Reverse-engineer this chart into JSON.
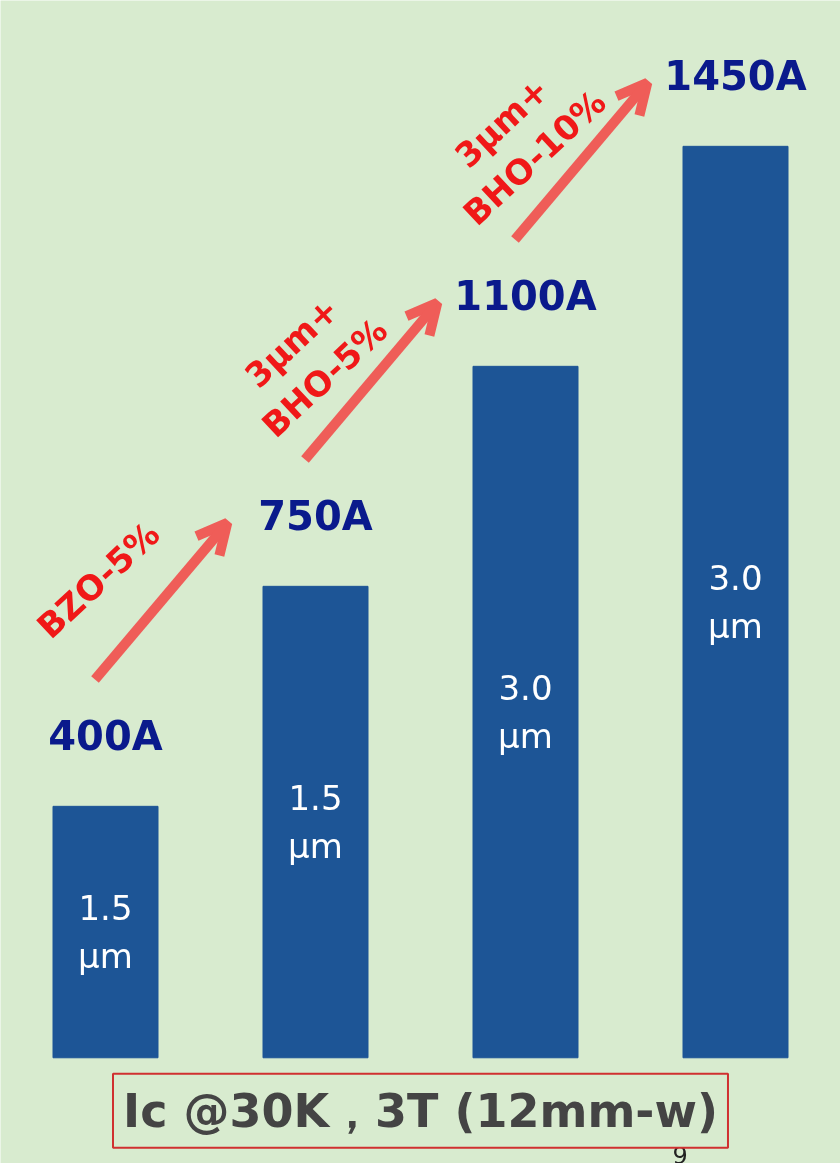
{
  "chart_data": {
    "type": "bar",
    "title": "Ic @30K，3T (12mm-w)",
    "categories": [
      null,
      null,
      null,
      null
    ],
    "values": [
      400,
      750,
      1100,
      1450
    ],
    "value_labels": [
      "400A",
      "750A",
      "1100A",
      "1450A"
    ],
    "color": "#1d5596",
    "annotations": [
      "1.5 µm",
      "1.5 µm",
      "3.0 µm",
      "3.0 µm",
      "BZO-5%",
      "3µm+ BHO-5%",
      "3µm+ BHO-10%",
      "9"
    ],
    "grid": false,
    "legend": false,
    "tick_labels": false
  }
}
